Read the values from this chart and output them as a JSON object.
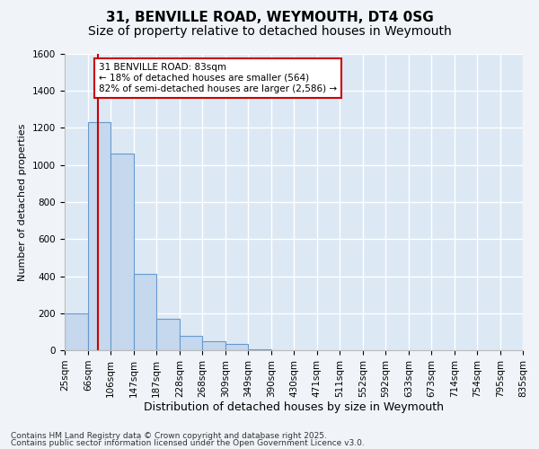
{
  "title1": "31, BENVILLE ROAD, WEYMOUTH, DT4 0SG",
  "title2": "Size of property relative to detached houses in Weymouth",
  "xlabel": "Distribution of detached houses by size in Weymouth",
  "ylabel": "Number of detached properties",
  "bins": [
    "25sqm",
    "66sqm",
    "106sqm",
    "147sqm",
    "187sqm",
    "228sqm",
    "268sqm",
    "309sqm",
    "349sqm",
    "390sqm",
    "430sqm",
    "471sqm",
    "511sqm",
    "552sqm",
    "592sqm",
    "633sqm",
    "673sqm",
    "714sqm",
    "754sqm",
    "795sqm",
    "835sqm"
  ],
  "bin_edges": [
    25,
    66,
    106,
    147,
    187,
    228,
    268,
    309,
    349,
    390,
    430,
    471,
    511,
    552,
    592,
    633,
    673,
    714,
    754,
    795,
    835
  ],
  "values": [
    200,
    1230,
    1060,
    410,
    170,
    80,
    50,
    35,
    5,
    2,
    0,
    0,
    0,
    0,
    0,
    0,
    0,
    0,
    0,
    0
  ],
  "bar_color": "#c5d8ee",
  "bar_edge_color": "#6699cc",
  "red_line_x": 83,
  "annotation_line1": "31 BENVILLE ROAD: 83sqm",
  "annotation_line2": "← 18% of detached houses are smaller (564)",
  "annotation_line3": "82% of semi-detached houses are larger (2,586) →",
  "annotation_box_color": "#ffffff",
  "annotation_border_color": "#cc0000",
  "ylim": [
    0,
    1600
  ],
  "yticks": [
    0,
    200,
    400,
    600,
    800,
    1000,
    1200,
    1400,
    1600
  ],
  "bg_color": "#dde8f5",
  "grid_color": "#ffffff",
  "outer_bg": "#f0f4f8",
  "footnote1": "Contains HM Land Registry data © Crown copyright and database right 2025.",
  "footnote2": "Contains public sector information licensed under the Open Government Licence v3.0.",
  "title1_fontsize": 11,
  "title2_fontsize": 10,
  "xlabel_fontsize": 9,
  "ylabel_fontsize": 8,
  "tick_fontsize": 7.5,
  "annotation_fontsize": 7.5,
  "footnote_fontsize": 6.5
}
